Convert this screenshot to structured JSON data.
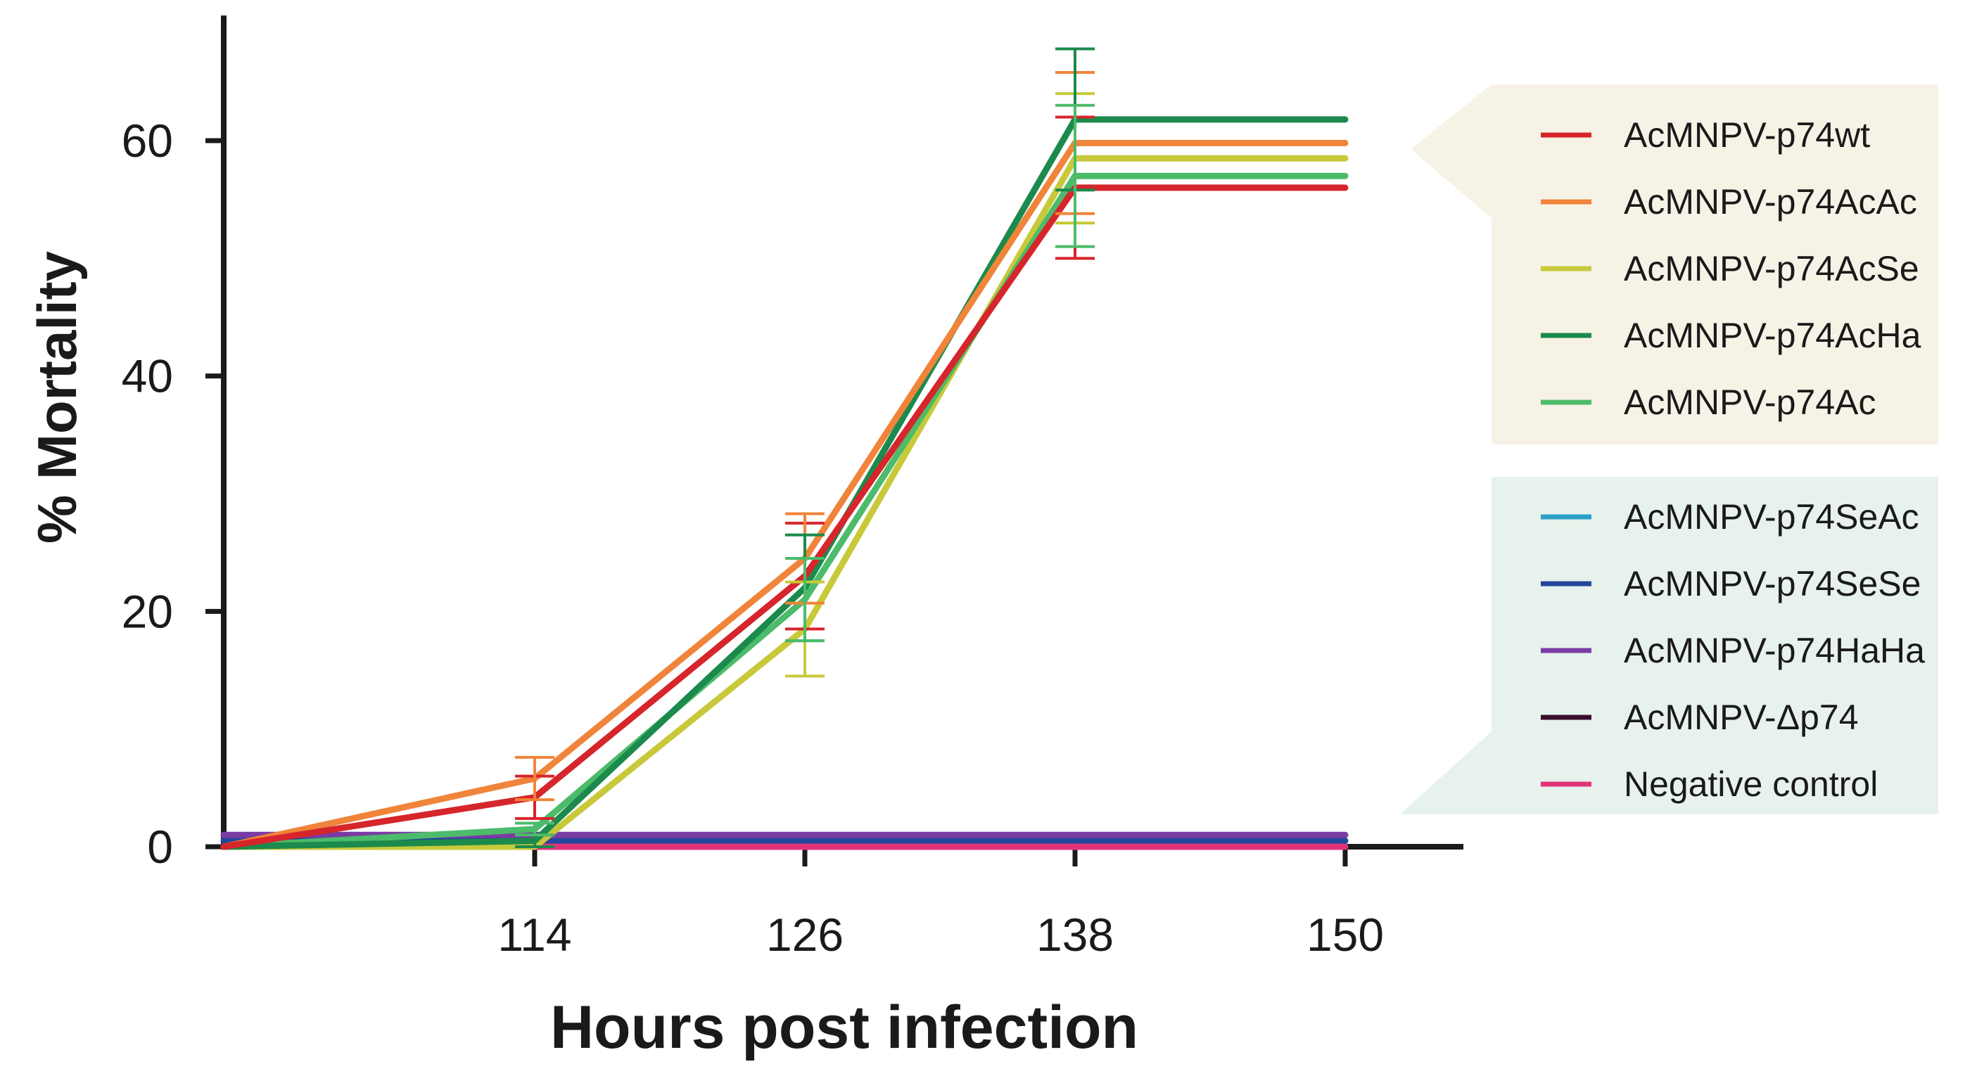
{
  "chart_data": {
    "type": "line",
    "title": "",
    "xlabel": "Hours post infection",
    "ylabel": "% Mortality",
    "x": [
      102,
      114,
      126,
      138,
      150
    ],
    "x_tick_labels": [
      "114",
      "126",
      "138",
      "150"
    ],
    "xlim": [
      100,
      155
    ],
    "ylim": [
      0,
      70
    ],
    "y_ticks": [
      0,
      20,
      40,
      60
    ],
    "y_tick_labels": [
      "0",
      "20",
      "40",
      "60"
    ],
    "legend_placement": "right",
    "legend_groups": [
      {
        "name": "group-1",
        "color": "#f6f3e6",
        "series_names": [
          "AcMNPV-p74wt",
          "AcMNPV-p74AcAc",
          "AcMNPV-p74AcSe",
          "AcMNPV-p74AcHa",
          "AcMNPV-p74Ac"
        ]
      },
      {
        "name": "group-2",
        "color": "#e7f2ec",
        "series_names": [
          "AcMNPV-p74SeAc",
          "AcMNPV-p74SeSe",
          "AcMNPV-p74HaHa",
          "AcMNPV-Δp74",
          "Negative control"
        ]
      }
    ],
    "series": [
      {
        "name": "AcMNPV-p74wt",
        "color": "#d6252b",
        "values": [
          0,
          4.2,
          23,
          56,
          56
        ],
        "errors": [
          0,
          1.8,
          4.5,
          6,
          0
        ]
      },
      {
        "name": "AcMNPV-p74AcAc",
        "color": "#f0843a",
        "values": [
          0,
          5.8,
          24.5,
          59.8,
          59.8
        ],
        "errors": [
          0,
          1.8,
          3.8,
          6,
          0
        ]
      },
      {
        "name": "AcMNPV-p74AcSe",
        "color": "#c8c93a",
        "values": [
          0,
          0,
          18.5,
          58.5,
          58.5
        ],
        "errors": [
          0,
          0,
          4,
          5.5,
          0
        ]
      },
      {
        "name": "AcMNPV-p74AcHa",
        "color": "#1b8a4c",
        "values": [
          0,
          0.5,
          22,
          61.8,
          61.8
        ],
        "errors": [
          0,
          0.5,
          4.5,
          6,
          0
        ]
      },
      {
        "name": "AcMNPV-p74Ac",
        "color": "#4cbb6a",
        "values": [
          0,
          1.5,
          21,
          57,
          57
        ],
        "errors": [
          0,
          0.5,
          3.5,
          6,
          0
        ]
      },
      {
        "name": "AcMNPV-p74SeAc",
        "color": "#2aa0c8",
        "values": [
          0,
          0,
          0,
          0,
          0
        ],
        "errors": [
          0,
          0,
          0,
          0,
          0
        ]
      },
      {
        "name": "AcMNPV-p74SeSe",
        "color": "#22469c",
        "values": [
          0.5,
          0.5,
          0.5,
          0.5,
          0.5
        ],
        "errors": [
          0,
          0,
          0,
          0,
          0
        ]
      },
      {
        "name": "AcMNPV-p74HaHa",
        "color": "#7a3ba3",
        "values": [
          1,
          1,
          1,
          1,
          1
        ],
        "errors": [
          0,
          0,
          0,
          0,
          0
        ]
      },
      {
        "name": "AcMNPV-Δp74",
        "color": "#3a0f2e",
        "values": [
          0,
          0,
          0,
          0,
          0
        ],
        "errors": [
          0,
          0,
          0,
          0,
          0
        ]
      },
      {
        "name": "Negative control",
        "color": "#e0337a",
        "values": [
          0,
          0,
          0,
          0,
          0
        ],
        "errors": [
          0,
          0,
          0,
          0,
          0
        ]
      }
    ]
  }
}
